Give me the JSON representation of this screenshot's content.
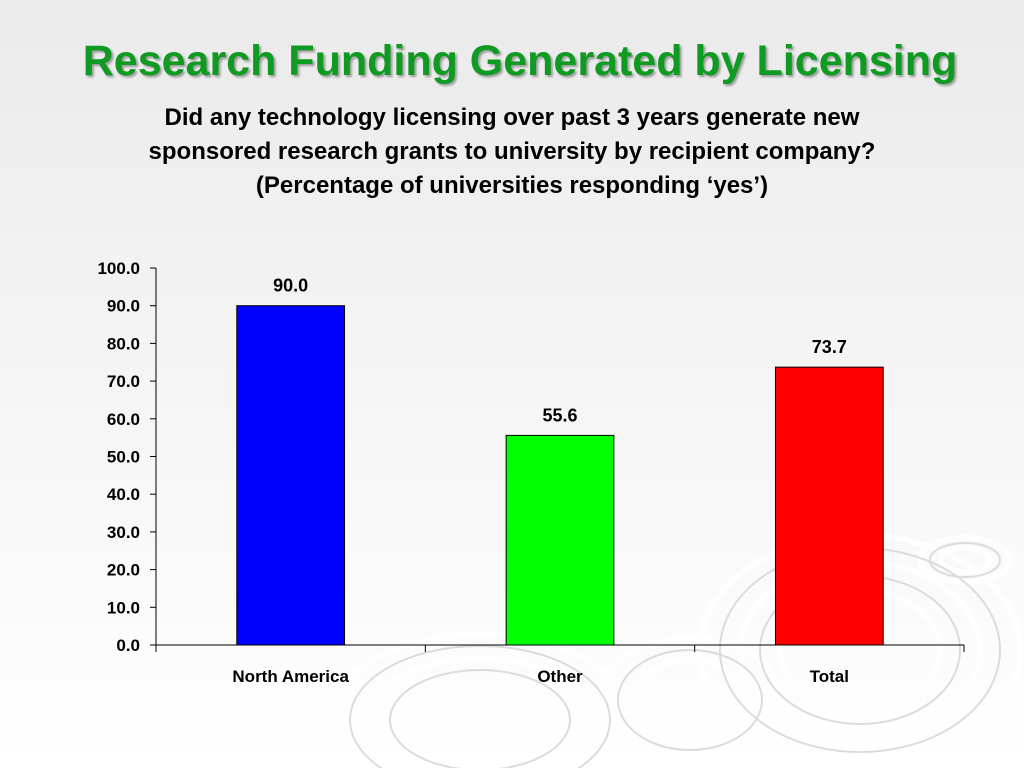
{
  "slide": {
    "title": "Research Funding Generated by Licensing",
    "subtitle_lines": [
      "Did any technology licensing over past 3 years generate new",
      "sponsored research grants to university by recipient company?",
      "(Percentage of universities responding ‘yes’)"
    ]
  },
  "colors": {
    "title": "#0f9a22",
    "bars": [
      "#0000ff",
      "#00ff00",
      "#ff0000"
    ]
  },
  "chart_data": {
    "type": "bar",
    "categories": [
      "North America",
      "Other",
      "Total"
    ],
    "values": [
      90.0,
      55.6,
      73.7
    ],
    "data_labels": [
      "90.0",
      "55.6",
      "73.7"
    ],
    "yticks": [
      "0.0",
      "10.0",
      "20.0",
      "30.0",
      "40.0",
      "50.0",
      "60.0",
      "70.0",
      "80.0",
      "90.0",
      "100.0"
    ],
    "ylim": [
      0,
      100
    ],
    "ystep": 10,
    "grid": false,
    "legend": "none"
  }
}
